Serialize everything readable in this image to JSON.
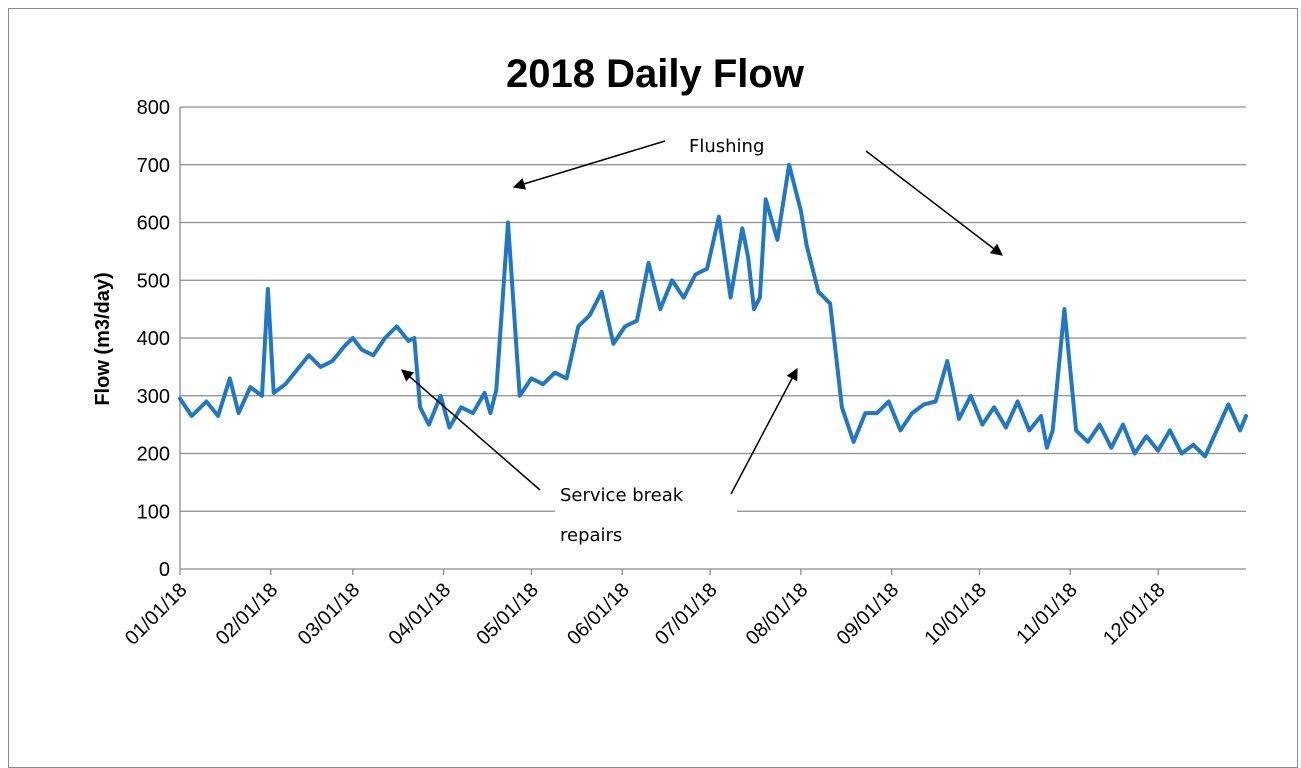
{
  "chart_data": {
    "type": "line",
    "title": "2018 Daily Flow",
    "xlabel": "",
    "ylabel": "Flow (m3/day)",
    "ylim": [
      0,
      800
    ],
    "yticks": [
      0,
      100,
      200,
      300,
      400,
      500,
      600,
      700,
      800
    ],
    "xlim": [
      "01/01/18",
      "12/31/18"
    ],
    "xtick_labels": [
      "01/01/18",
      "02/01/18",
      "03/01/18",
      "04/01/18",
      "05/01/18",
      "06/01/18",
      "07/01/18",
      "08/01/18",
      "09/01/18",
      "10/01/18",
      "11/01/18",
      "12/01/18"
    ],
    "grid": "horizontal",
    "legend": "none",
    "colors": {
      "series": "#1f77c8",
      "grid": "#8c8c8c"
    },
    "series": [
      {
        "name": "",
        "x": [
          "01/01/18",
          "01/05/18",
          "01/10/18",
          "01/14/18",
          "01/18/18",
          "01/21/18",
          "01/25/18",
          "01/29/18",
          "01/31/18",
          "02/02/18",
          "02/06/18",
          "02/10/18",
          "02/14/18",
          "02/18/18",
          "02/22/18",
          "02/26/18",
          "03/01/18",
          "03/04/18",
          "03/08/18",
          "03/12/18",
          "03/16/18",
          "03/20/18",
          "03/22/18",
          "03/24/18",
          "03/27/18",
          "03/31/18",
          "04/03/18",
          "04/07/18",
          "04/11/18",
          "04/15/18",
          "04/17/18",
          "04/19/18",
          "04/23/18",
          "04/27/18",
          "05/01/18",
          "05/05/18",
          "05/09/18",
          "05/13/18",
          "05/17/18",
          "05/21/18",
          "05/25/18",
          "05/29/18",
          "06/02/18",
          "06/06/18",
          "06/10/18",
          "06/14/18",
          "06/18/18",
          "06/22/18",
          "06/26/18",
          "06/30/18",
          "07/04/18",
          "07/08/18",
          "07/12/18",
          "07/14/18",
          "07/16/18",
          "07/18/18",
          "07/20/18",
          "07/24/18",
          "07/28/18",
          "08/01/18",
          "08/03/18",
          "08/07/18",
          "08/11/18",
          "08/15/18",
          "08/19/18",
          "08/23/18",
          "08/27/18",
          "08/31/18",
          "09/04/18",
          "09/08/18",
          "09/12/18",
          "09/16/18",
          "09/20/18",
          "09/24/18",
          "09/28/18",
          "10/02/18",
          "10/06/18",
          "10/10/18",
          "10/14/18",
          "10/18/18",
          "10/22/18",
          "10/24/18",
          "10/26/18",
          "10/30/18",
          "11/03/18",
          "11/07/18",
          "11/11/18",
          "11/15/18",
          "11/19/18",
          "11/23/18",
          "11/27/18",
          "12/01/18",
          "12/05/18",
          "12/09/18",
          "12/13/18",
          "12/17/18",
          "12/21/18",
          "12/25/18",
          "12/29/18",
          "12/31/18"
        ],
        "values": [
          295,
          265,
          290,
          265,
          330,
          270,
          315,
          300,
          485,
          305,
          320,
          345,
          370,
          350,
          360,
          385,
          400,
          380,
          370,
          400,
          420,
          395,
          400,
          280,
          250,
          300,
          245,
          280,
          270,
          305,
          270,
          310,
          600,
          300,
          330,
          320,
          340,
          330,
          420,
          440,
          480,
          390,
          420,
          430,
          530,
          450,
          500,
          470,
          510,
          520,
          610,
          470,
          590,
          540,
          450,
          470,
          640,
          570,
          700,
          620,
          560,
          480,
          460,
          280,
          220,
          270,
          270,
          290,
          240,
          270,
          285,
          290,
          360,
          260,
          300,
          250,
          280,
          245,
          290,
          240,
          265,
          210,
          240,
          450,
          240,
          220,
          250,
          210,
          250,
          200,
          230,
          205,
          240,
          200,
          215,
          195,
          240,
          285,
          240,
          265
        ]
      }
    ],
    "annotations": [
      {
        "text": "Flushing"
      },
      {
        "text": "Service break"
      },
      {
        "text": "repairs"
      }
    ]
  }
}
